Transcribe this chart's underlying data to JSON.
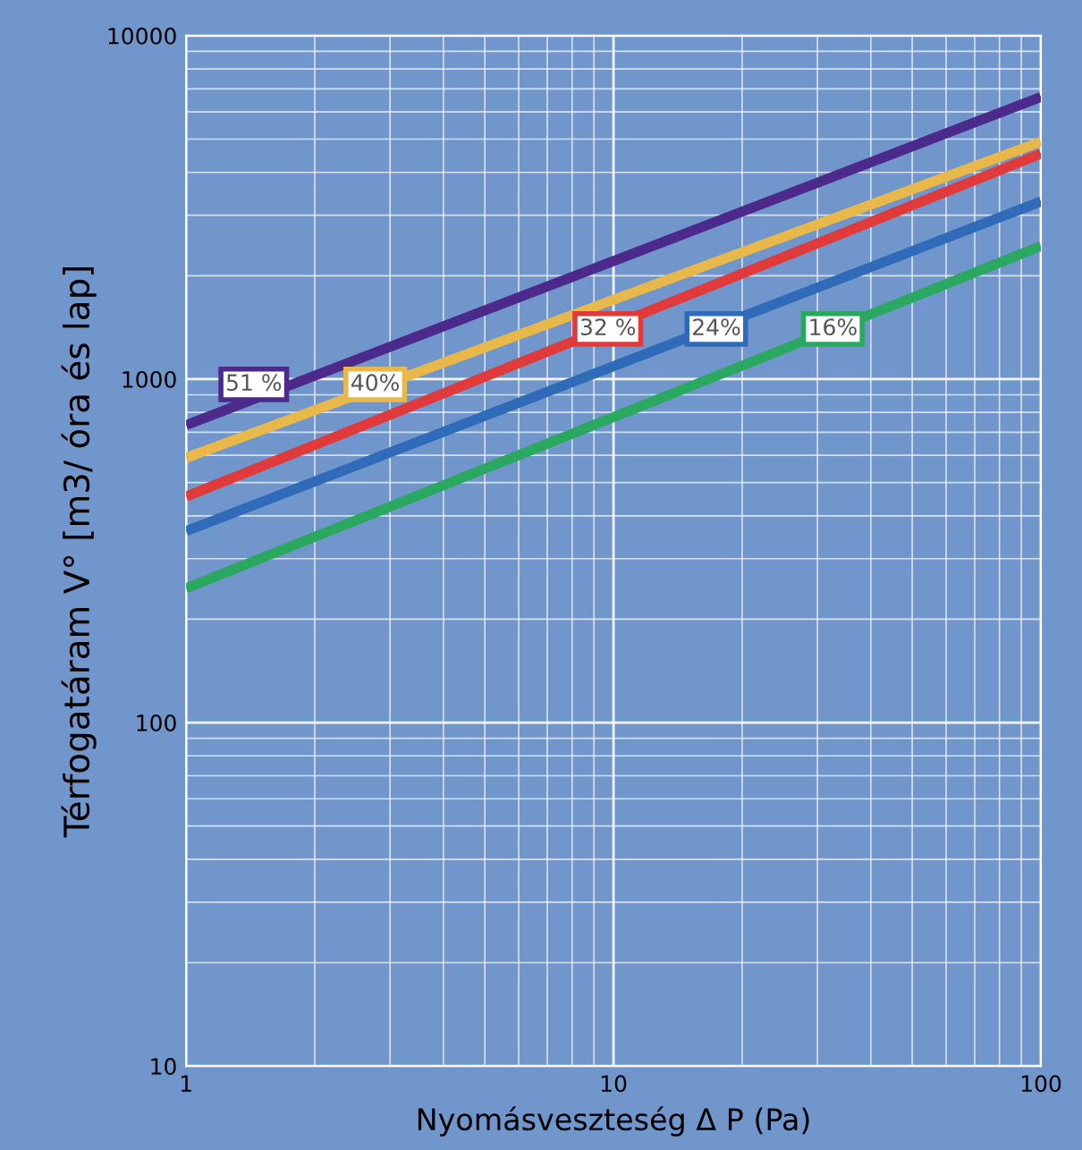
{
  "chart_data": {
    "type": "line",
    "xlabel": "Nyomásveszteség Δ P (Pa)",
    "ylabel": "Térfogatáram V° [m3/ óra és lap]",
    "log": "xy",
    "xlim": [
      1,
      100
    ],
    "ylim": [
      10,
      10000
    ],
    "xticks": [
      1,
      10,
      100
    ],
    "yticks": [
      10,
      100,
      1000,
      10000
    ],
    "grid": true,
    "x": [
      1,
      100
    ],
    "series": [
      {
        "color": "#4b2a8c",
        "values": [
          735,
          6630
        ]
      },
      {
        "color": "#e8b84a",
        "values": [
          590,
          4910
        ]
      },
      {
        "color": "#e03a3a",
        "values": [
          455,
          4530
        ]
      },
      {
        "color": "#2f6bb8",
        "values": [
          361,
          3290
        ]
      },
      {
        "color": "#2aa860",
        "values": [
          246,
          2440
        ]
      }
    ],
    "annotations": [
      {
        "text": "51 %",
        "x": 1.44,
        "y": 965
      },
      {
        "text": "40%",
        "x": 2.77,
        "y": 965
      },
      {
        "text": "32 %",
        "x": 9.7,
        "y": 1400
      },
      {
        "text": "24%",
        "x": 17.4,
        "y": 1400
      },
      {
        "text": "16%",
        "x": 32.6,
        "y": 1400
      }
    ]
  }
}
